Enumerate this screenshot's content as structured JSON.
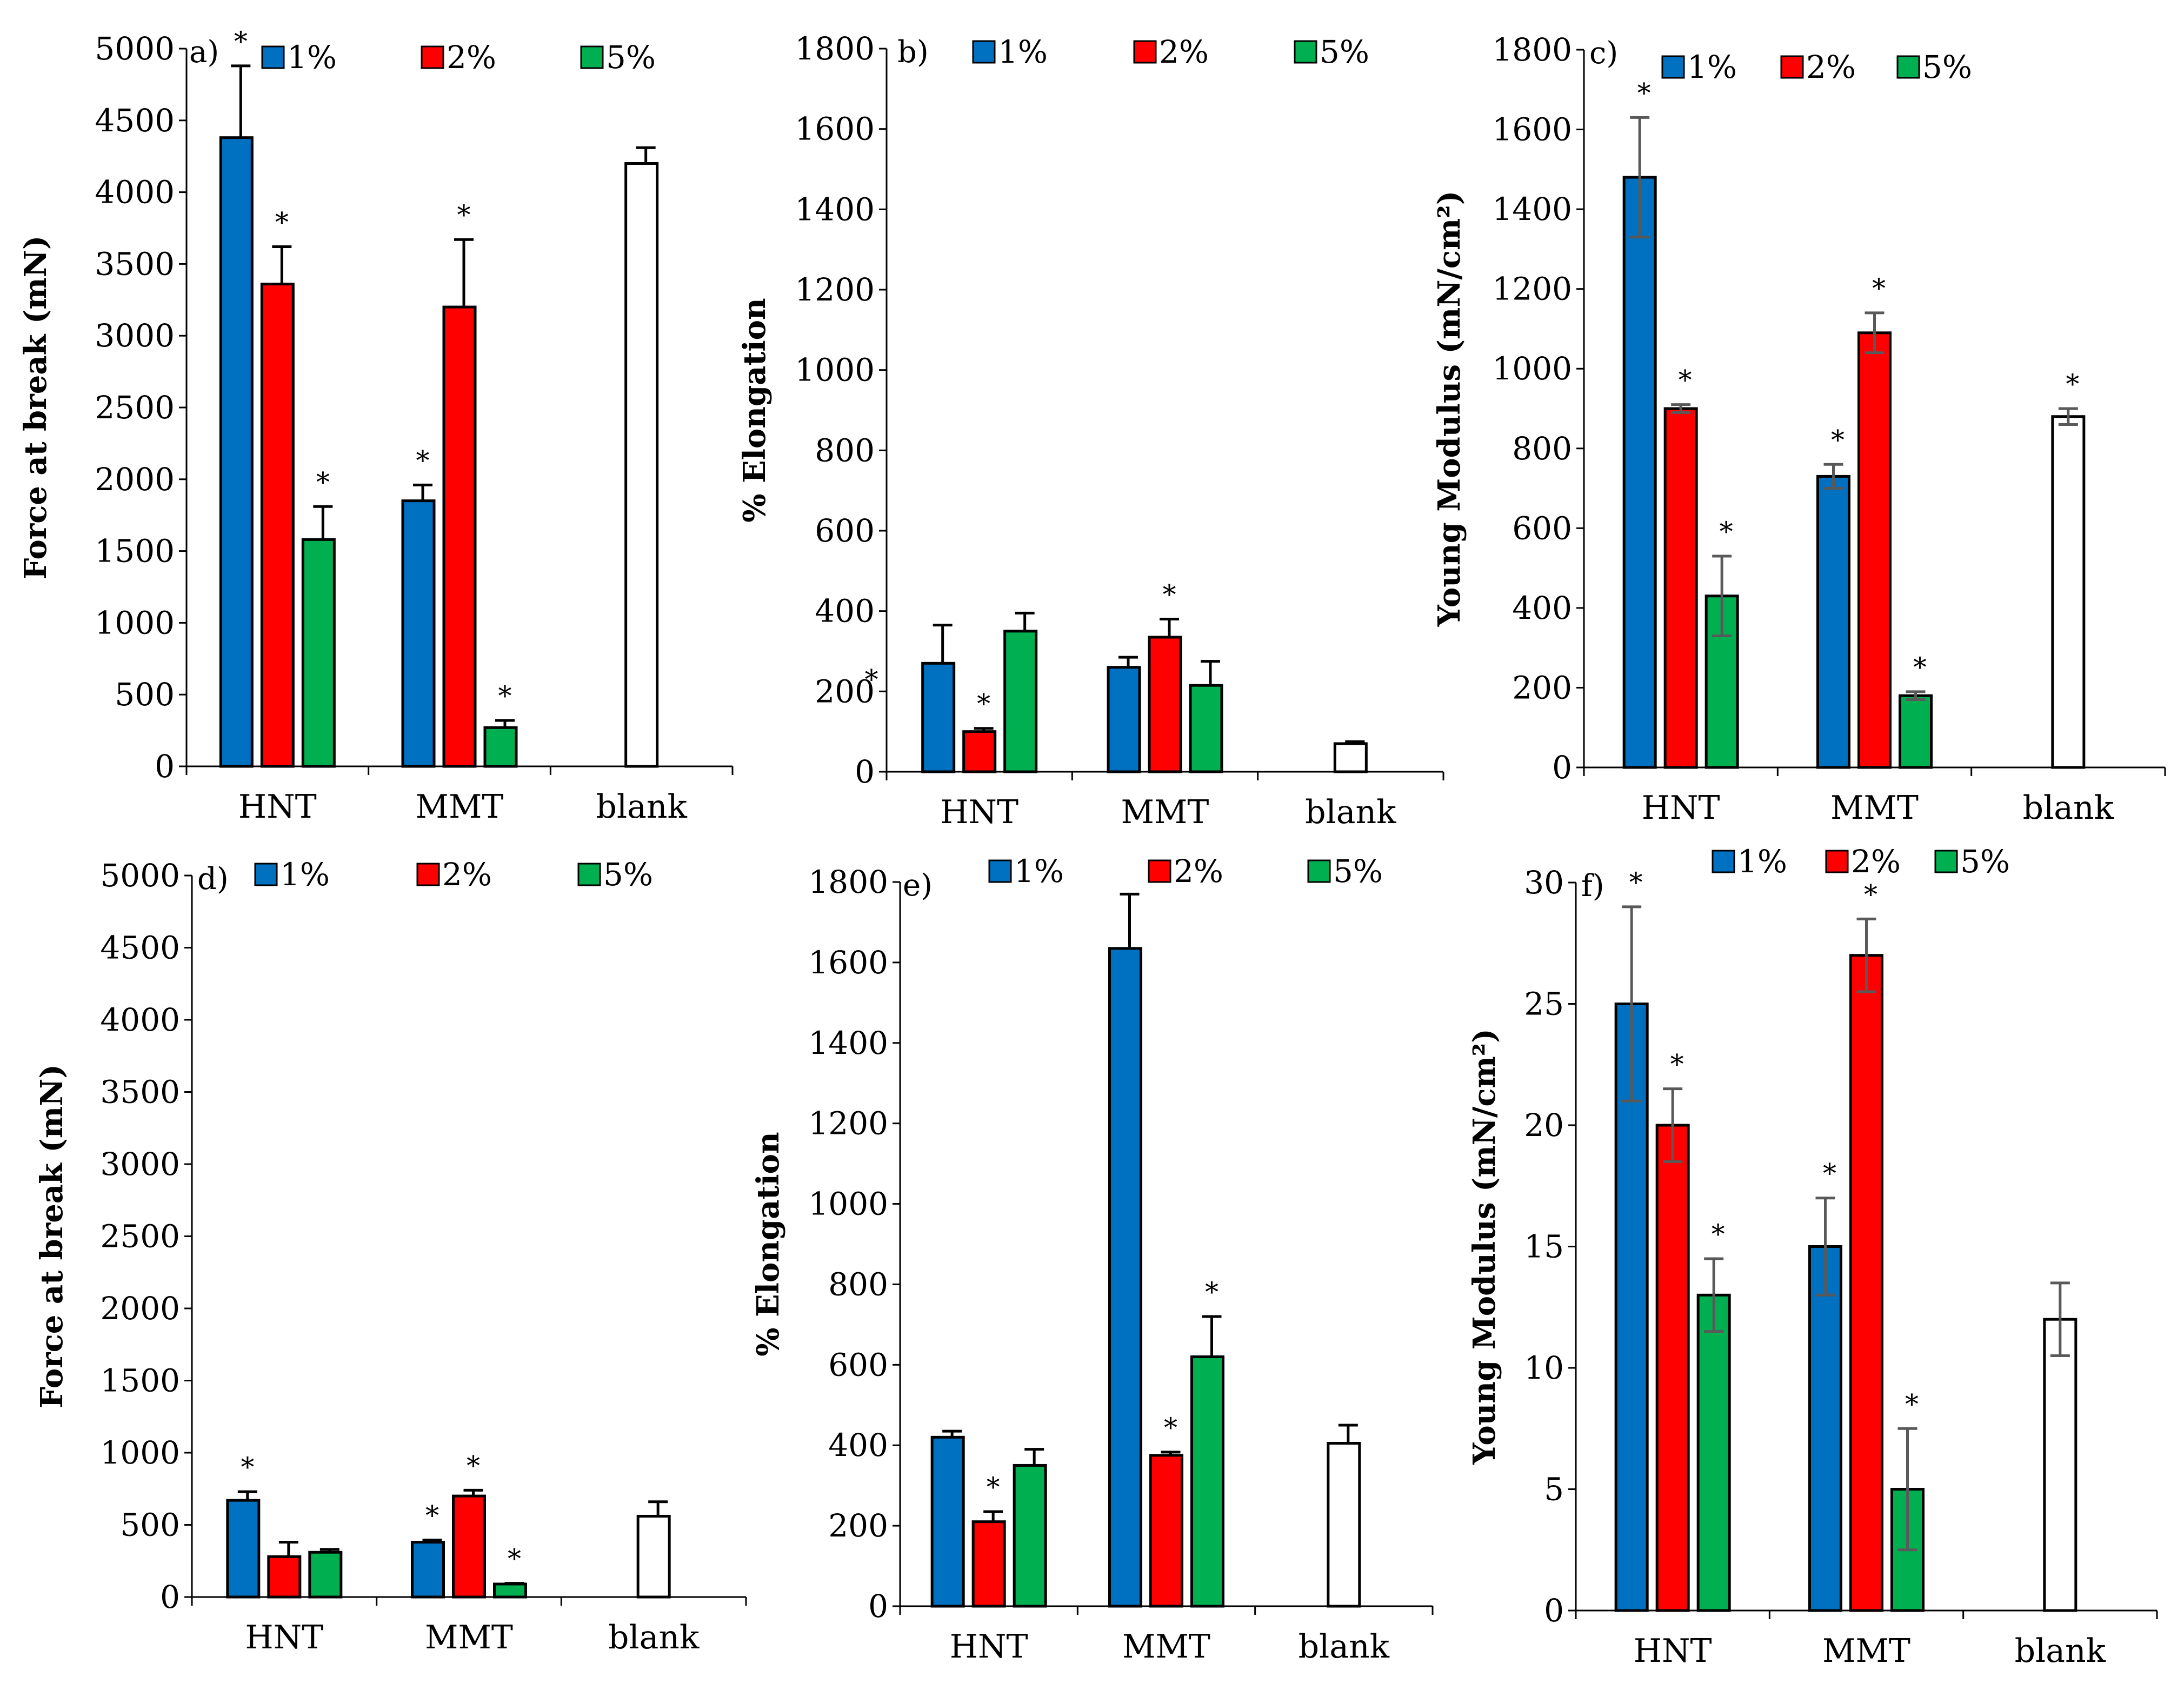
{
  "colors": {
    "1%": "#0070C0",
    "2%": "#FF0000",
    "5%": "#00B050",
    "blank": "#FFFFFF",
    "stroke": "#000000",
    "error_dark": "#000000",
    "error_gray": "#595959"
  },
  "chart_data": [
    {
      "id": "a",
      "panel_label": "a)",
      "type": "bar",
      "ylabel": "Force at break (mN)",
      "ylim": [
        0,
        5000
      ],
      "yticks": [
        0,
        500,
        1000,
        1500,
        2000,
        2500,
        3000,
        3500,
        4000,
        4500,
        5000
      ],
      "categories": [
        "HNT",
        "MMT",
        "blank"
      ],
      "legend": [
        "1%",
        "2%",
        "5%"
      ],
      "series": [
        {
          "name": "1%",
          "values": [
            4380,
            1850,
            null
          ],
          "errors": [
            500,
            110,
            null
          ],
          "stars": [
            true,
            true,
            false
          ]
        },
        {
          "name": "2%",
          "values": [
            3360,
            3200,
            null
          ],
          "errors": [
            260,
            470,
            null
          ],
          "stars": [
            true,
            true,
            false
          ]
        },
        {
          "name": "5%",
          "values": [
            1580,
            270,
            null
          ],
          "errors": [
            230,
            50,
            null
          ],
          "stars": [
            true,
            true,
            false
          ]
        },
        {
          "name": "blank",
          "values": [
            null,
            null,
            4200
          ],
          "errors": [
            null,
            null,
            110
          ],
          "stars": [
            false,
            false,
            false
          ]
        }
      ]
    },
    {
      "id": "b",
      "panel_label": "b)",
      "type": "bar",
      "ylabel": "% Elongation",
      "ylim": [
        0,
        1800
      ],
      "yticks": [
        0,
        200,
        400,
        600,
        800,
        1000,
        1200,
        1400,
        1600,
        1800
      ],
      "categories": [
        "HNT",
        "MMT",
        "blank"
      ],
      "legend": [
        "1%",
        "2%",
        "5%"
      ],
      "series": [
        {
          "name": "1%",
          "values": [
            270,
            260,
            null
          ],
          "errors": [
            95,
            25,
            null
          ],
          "stars": [
            false,
            false,
            false
          ]
        },
        {
          "name": "2%",
          "values": [
            100,
            335,
            null
          ],
          "errors": [
            8,
            45,
            null
          ],
          "stars": [
            true,
            true,
            false
          ]
        },
        {
          "name": "5%",
          "values": [
            350,
            215,
            null
          ],
          "errors": [
            45,
            60,
            null
          ],
          "stars": [
            false,
            false,
            false
          ]
        },
        {
          "name": "blank",
          "values": [
            null,
            null,
            70
          ],
          "errors": [
            null,
            null,
            5
          ],
          "stars": [
            false,
            false,
            false
          ]
        }
      ],
      "extra_star_near_yaxis": "*"
    },
    {
      "id": "c",
      "panel_label": "c)",
      "type": "bar",
      "ylabel": "Young Modulus (mN/cm²)",
      "ylim": [
        0,
        1800
      ],
      "yticks": [
        0,
        200,
        400,
        600,
        800,
        1000,
        1200,
        1400,
        1600,
        1800
      ],
      "categories": [
        "HNT",
        "MMT",
        "blank"
      ],
      "legend": [
        "1%",
        "2%",
        "5%"
      ],
      "series": [
        {
          "name": "1%",
          "values": [
            1480,
            730,
            null
          ],
          "errors": [
            150,
            30,
            null
          ],
          "stars": [
            true,
            true,
            false
          ]
        },
        {
          "name": "2%",
          "values": [
            900,
            1090,
            null
          ],
          "errors": [
            10,
            50,
            null
          ],
          "stars": [
            true,
            true,
            false
          ]
        },
        {
          "name": "5%",
          "values": [
            430,
            180,
            null
          ],
          "errors": [
            100,
            10,
            null
          ],
          "stars": [
            true,
            true,
            false
          ]
        },
        {
          "name": "blank",
          "values": [
            null,
            null,
            880
          ],
          "errors": [
            null,
            null,
            20
          ],
          "stars": [
            false,
            false,
            true
          ]
        }
      ]
    },
    {
      "id": "d",
      "panel_label": "d)",
      "type": "bar",
      "ylabel": "Force at break (mN)",
      "ylim": [
        0,
        5000
      ],
      "yticks": [
        0,
        500,
        1000,
        1500,
        2000,
        2500,
        3000,
        3500,
        4000,
        4500,
        5000
      ],
      "categories": [
        "HNT",
        "MMT",
        "blank"
      ],
      "legend": [
        "1%",
        "2%",
        "5%"
      ],
      "series": [
        {
          "name": "1%",
          "values": [
            670,
            380,
            null
          ],
          "errors": [
            60,
            15,
            null
          ],
          "stars": [
            true,
            true,
            false
          ]
        },
        {
          "name": "2%",
          "values": [
            280,
            700,
            null
          ],
          "errors": [
            100,
            40,
            null
          ],
          "stars": [
            false,
            true,
            false
          ]
        },
        {
          "name": "5%",
          "values": [
            310,
            90,
            null
          ],
          "errors": [
            20,
            5,
            null
          ],
          "stars": [
            false,
            true,
            false
          ]
        },
        {
          "name": "blank",
          "values": [
            null,
            null,
            560
          ],
          "errors": [
            null,
            null,
            100
          ],
          "stars": [
            false,
            false,
            false
          ]
        }
      ]
    },
    {
      "id": "e",
      "panel_label": "e)",
      "type": "bar",
      "ylabel": "% Elongation",
      "ylim": [
        0,
        1800
      ],
      "yticks": [
        0,
        200,
        400,
        600,
        800,
        1000,
        1200,
        1400,
        1600,
        1800
      ],
      "categories": [
        "HNT",
        "MMT",
        "blank"
      ],
      "legend": [
        "1%",
        "2%",
        "5%"
      ],
      "series": [
        {
          "name": "1%",
          "values": [
            420,
            1635,
            null
          ],
          "errors": [
            15,
            135,
            null
          ],
          "stars": [
            false,
            false,
            false
          ]
        },
        {
          "name": "2%",
          "values": [
            210,
            375,
            null
          ],
          "errors": [
            25,
            8,
            null
          ],
          "stars": [
            true,
            true,
            false
          ]
        },
        {
          "name": "5%",
          "values": [
            350,
            620,
            null
          ],
          "errors": [
            40,
            100,
            null
          ],
          "stars": [
            false,
            true,
            false
          ]
        },
        {
          "name": "blank",
          "values": [
            null,
            null,
            405
          ],
          "errors": [
            null,
            null,
            45
          ],
          "stars": [
            false,
            false,
            false
          ]
        }
      ]
    },
    {
      "id": "f",
      "panel_label": "f)",
      "type": "bar",
      "ylabel": "Young Modulus (mN/cm²)",
      "ylim": [
        0,
        30
      ],
      "yticks": [
        0,
        5,
        10,
        15,
        20,
        25,
        30
      ],
      "categories": [
        "HNT",
        "MMT",
        "blank"
      ],
      "legend": [
        "1%",
        "2%",
        "5%"
      ],
      "series": [
        {
          "name": "1%",
          "values": [
            25,
            15,
            null
          ],
          "errors": [
            4,
            2,
            null
          ],
          "stars": [
            true,
            true,
            false
          ]
        },
        {
          "name": "2%",
          "values": [
            20,
            27,
            null
          ],
          "errors": [
            1.5,
            1.5,
            null
          ],
          "stars": [
            true,
            true,
            false
          ]
        },
        {
          "name": "5%",
          "values": [
            13,
            5,
            null
          ],
          "errors": [
            1.5,
            2.5,
            null
          ],
          "stars": [
            true,
            true,
            false
          ]
        },
        {
          "name": "blank",
          "values": [
            null,
            null,
            12
          ],
          "errors": [
            null,
            null,
            1.5
          ],
          "stars": [
            false,
            false,
            false
          ]
        }
      ]
    }
  ]
}
